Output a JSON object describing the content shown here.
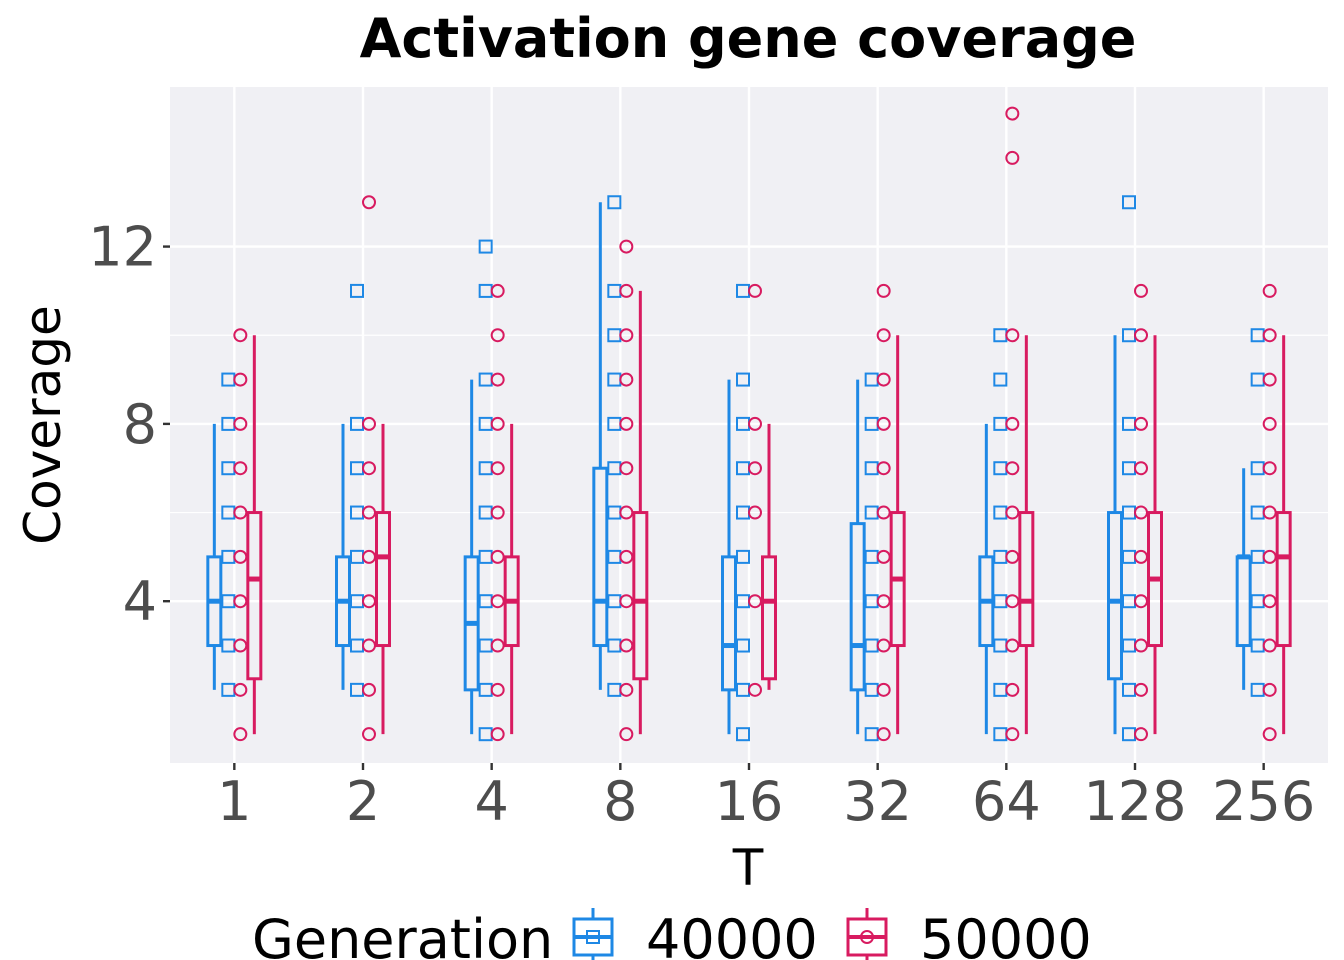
{
  "chart_data": {
    "type": "box",
    "title": "Activation gene coverage",
    "xlabel": "T",
    "ylabel": "Coverage",
    "categories": [
      "1",
      "2",
      "4",
      "8",
      "16",
      "32",
      "64",
      "128",
      "256"
    ],
    "y_ticks": [
      4,
      8,
      12
    ],
    "y_tick_labels": [
      "4",
      "8",
      "12"
    ],
    "ylim": [
      0.35,
      15.6
    ],
    "grid": true,
    "legend": {
      "title": "Generation",
      "position": "bottom"
    },
    "series": [
      {
        "name": "40000",
        "color": "#1e88e5",
        "marker": "square",
        "boxes": [
          {
            "whisker_low": 2,
            "q1": 3,
            "median": 4,
            "q3": 5,
            "whisker_high": 8
          },
          {
            "whisker_low": 2,
            "q1": 3,
            "median": 4,
            "q3": 5,
            "whisker_high": 8
          },
          {
            "whisker_low": 1,
            "q1": 2,
            "median": 3.5,
            "q3": 5,
            "whisker_high": 9
          },
          {
            "whisker_low": 2,
            "q1": 3,
            "median": 4,
            "q3": 7,
            "whisker_high": 13
          },
          {
            "whisker_low": 1,
            "q1": 2,
            "median": 3,
            "q3": 5,
            "whisker_high": 9
          },
          {
            "whisker_low": 1,
            "q1": 2,
            "median": 3,
            "q3": 5.75,
            "whisker_high": 9
          },
          {
            "whisker_low": 1,
            "q1": 3,
            "median": 4,
            "q3": 5,
            "whisker_high": 8
          },
          {
            "whisker_low": 1,
            "q1": 2.25,
            "median": 4,
            "q3": 6,
            "whisker_high": 10
          },
          {
            "whisker_low": 2,
            "q1": 3,
            "median": 5,
            "q3": 5,
            "whisker_high": 7
          }
        ],
        "points": [
          [
            2,
            3,
            4,
            5,
            6,
            7,
            8,
            9
          ],
          [
            2,
            3,
            4,
            5,
            6,
            7,
            8,
            11
          ],
          [
            1,
            2,
            3,
            4,
            5,
            6,
            7,
            8,
            9,
            11,
            12
          ],
          [
            2,
            3,
            4,
            5,
            6,
            7,
            8,
            9,
            10,
            11,
            13
          ],
          [
            1,
            2,
            3,
            4,
            5,
            6,
            7,
            8,
            9,
            11
          ],
          [
            1,
            2,
            3,
            4,
            5,
            6,
            7,
            8,
            9
          ],
          [
            1,
            2,
            3,
            4,
            5,
            6,
            7,
            8,
            9,
            10
          ],
          [
            1,
            2,
            3,
            4,
            5,
            6,
            7,
            8,
            10,
            13
          ],
          [
            2,
            3,
            4,
            5,
            6,
            7,
            9,
            10
          ]
        ]
      },
      {
        "name": "50000",
        "color": "#d81b60",
        "marker": "circle",
        "boxes": [
          {
            "whisker_low": 1,
            "q1": 2.25,
            "median": 4.5,
            "q3": 6,
            "whisker_high": 10
          },
          {
            "whisker_low": 1,
            "q1": 3,
            "median": 5,
            "q3": 6,
            "whisker_high": 8
          },
          {
            "whisker_low": 1,
            "q1": 3,
            "median": 4,
            "q3": 5,
            "whisker_high": 8
          },
          {
            "whisker_low": 1,
            "q1": 2.25,
            "median": 4,
            "q3": 6,
            "whisker_high": 11
          },
          {
            "whisker_low": 2,
            "q1": 2.25,
            "median": 4,
            "q3": 5,
            "whisker_high": 8
          },
          {
            "whisker_low": 1,
            "q1": 3,
            "median": 4.5,
            "q3": 6,
            "whisker_high": 10
          },
          {
            "whisker_low": 1,
            "q1": 3,
            "median": 4,
            "q3": 6,
            "whisker_high": 10
          },
          {
            "whisker_low": 1,
            "q1": 3,
            "median": 4.5,
            "q3": 6,
            "whisker_high": 10
          },
          {
            "whisker_low": 1,
            "q1": 3,
            "median": 5,
            "q3": 6,
            "whisker_high": 10
          }
        ],
        "points": [
          [
            1,
            2,
            3,
            4,
            5,
            6,
            7,
            8,
            9,
            10
          ],
          [
            1,
            2,
            3,
            4,
            5,
            6,
            7,
            8,
            13
          ],
          [
            1,
            2,
            3,
            4,
            5,
            6,
            7,
            8,
            9,
            10,
            11
          ],
          [
            1,
            2,
            3,
            4,
            5,
            6,
            7,
            8,
            9,
            10,
            11,
            12
          ],
          [
            2,
            4,
            6,
            7,
            8,
            11
          ],
          [
            1,
            2,
            3,
            4,
            5,
            6,
            7,
            8,
            9,
            10,
            11
          ],
          [
            1,
            2,
            3,
            4,
            5,
            6,
            7,
            8,
            10,
            14,
            15
          ],
          [
            1,
            2,
            3,
            4,
            5,
            6,
            7,
            8,
            10,
            11
          ],
          [
            1,
            2,
            3,
            4,
            5,
            6,
            7,
            8,
            9,
            10,
            11
          ]
        ]
      }
    ]
  }
}
